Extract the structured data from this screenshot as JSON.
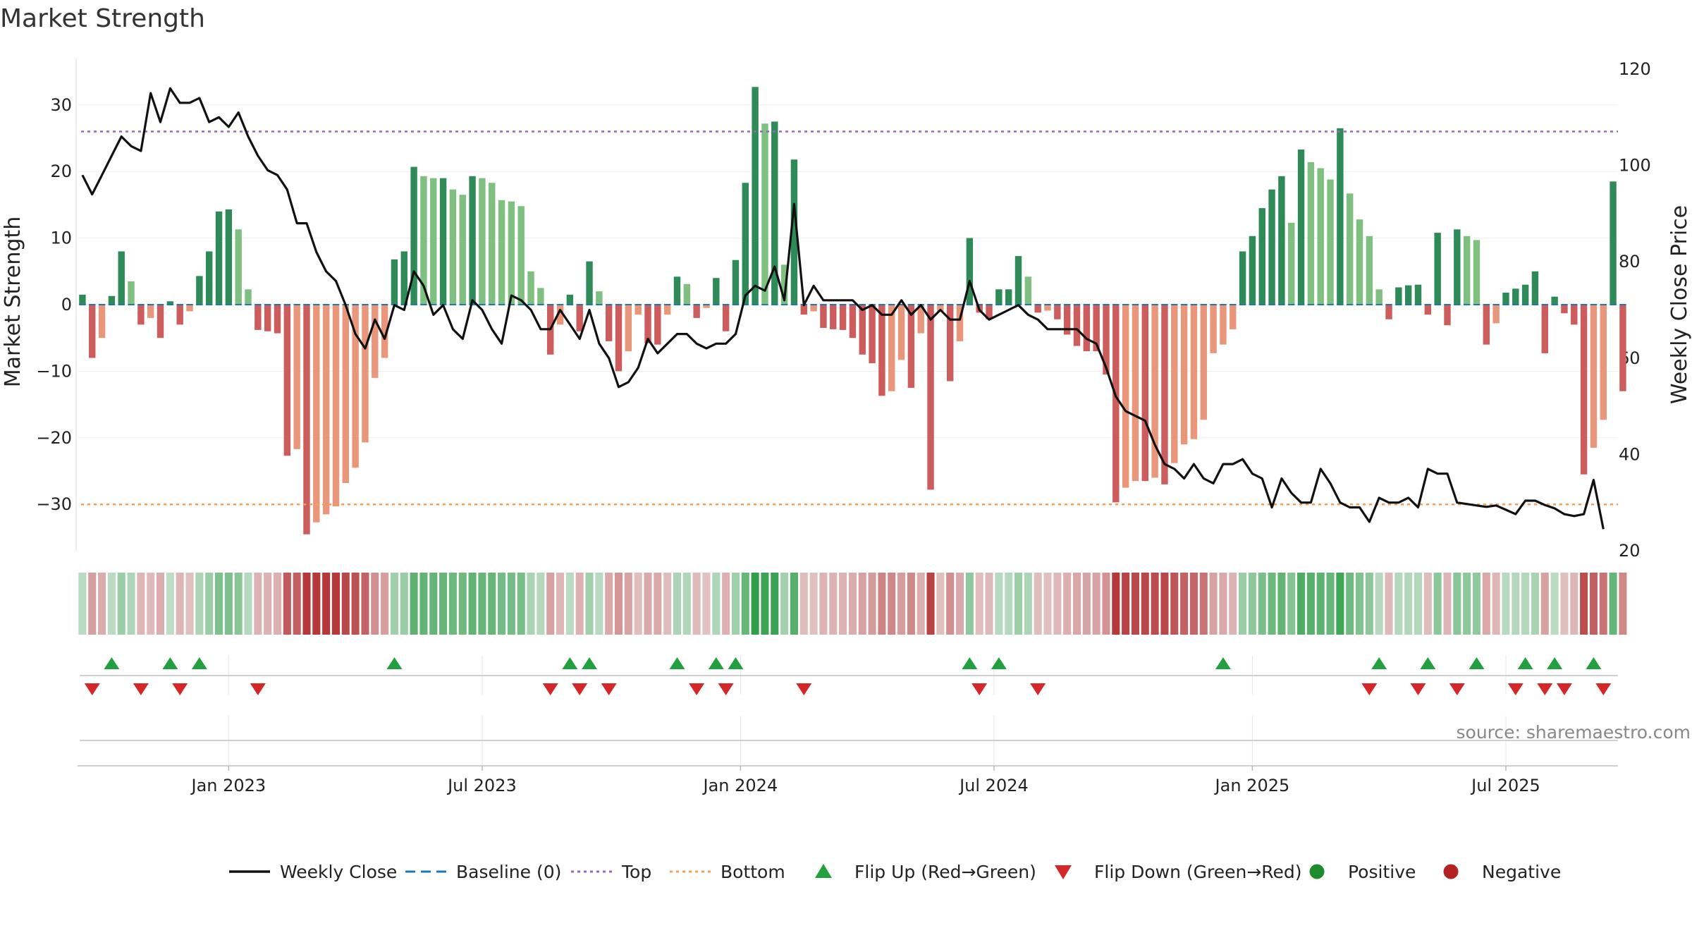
{
  "chart_data": {
    "type": "bar",
    "title": "Market Strength",
    "ylabel_left": "Market Strength",
    "ylabel_right": "Weekly Close Price",
    "ylim_left": [
      -37,
      37
    ],
    "ylim_right": [
      20,
      120
    ],
    "yticks_left": [
      "30",
      "20",
      "10",
      "0",
      "−10",
      "−20",
      "−30"
    ],
    "yticks_left_values": [
      30,
      20,
      10,
      0,
      -10,
      -20,
      -30
    ],
    "yticks_right": [
      "120",
      "100",
      "80",
      "60",
      "40",
      "20"
    ],
    "yticks_right_values": [
      120,
      100,
      80,
      60,
      40,
      20
    ],
    "x_ticks": [
      "Jan 2023",
      "Jul 2023",
      "Jan 2024",
      "Jul 2024",
      "Jan 2025",
      "Jul 2025"
    ],
    "x_tick_weeks": [
      15,
      41,
      67.5,
      93.5,
      120,
      146
    ],
    "top_line": 26,
    "bottom_line": -30,
    "grid": true,
    "legend_position": "bottom",
    "weeks": 158,
    "series": [
      {
        "name": "Market Strength",
        "values": [
          1.5,
          -8,
          -5,
          1.3,
          8,
          3.5,
          -3,
          -2,
          -5,
          0.5,
          -3,
          -1,
          4.3,
          8,
          14,
          14.3,
          11.3,
          2.3,
          -3.8,
          -4,
          -4.3,
          -22.7,
          -21.7,
          -34.5,
          -32.7,
          -31.5,
          -30.3,
          -26.8,
          -24.5,
          -20.7,
          -11,
          -8,
          6.8,
          8,
          20.7,
          19.3,
          19,
          19,
          17.3,
          16.5,
          19.3,
          19,
          18.3,
          15.7,
          15.5,
          14.8,
          5,
          2.5,
          -7.5,
          -3,
          1.5,
          -4,
          6.5,
          2,
          -5.5,
          -10,
          -7,
          -1.5,
          -5.8,
          -6,
          -1.5,
          4.2,
          3.1,
          -2,
          -0.5,
          4,
          -4,
          6.7,
          18.3,
          32.7,
          27.2,
          27.5,
          6,
          21.8,
          -1.5,
          -1,
          -3.5,
          -3.7,
          -3.8,
          -5,
          -7.5,
          -8.8,
          -13.7,
          -13,
          -8.3,
          -12.5,
          -4.3,
          -27.8,
          -1,
          -11.5,
          -5.5,
          10,
          -1.2,
          -2.2,
          2.3,
          2.3,
          7.3,
          4.2,
          -1.2,
          -0.9,
          -2.2,
          -4.5,
          -6.2,
          -7,
          -7,
          -10.5,
          -29.7,
          -27.5,
          -26.5,
          -26.5,
          -26,
          -27,
          -23.8,
          -21,
          -20.2,
          -17.3,
          -7.3,
          -6,
          -3.7,
          8,
          10.3,
          14.5,
          17.3,
          19.3,
          12.3,
          23.3,
          21.4,
          20.5,
          18.8,
          26.5,
          16.7,
          12.8,
          10.3,
          2.3,
          -2.2,
          2.6,
          2.9,
          3,
          -1.5,
          10.8,
          -3.1,
          11.3,
          10.3,
          9.7,
          -6,
          -2.8,
          1.8,
          2.4,
          3,
          5,
          -7.3,
          1.2,
          -1.3,
          -3,
          -25.5,
          -21.5,
          -17.3,
          18.5,
          -13
        ]
      },
      {
        "name": "Weekly Close",
        "values": [
          98,
          94,
          98,
          102,
          106,
          104,
          103,
          115,
          109,
          116,
          113,
          113,
          114,
          109,
          110,
          108,
          111,
          106,
          102,
          99,
          98,
          95,
          88,
          88,
          82,
          78,
          76,
          71,
          65,
          62,
          68,
          64,
          71,
          70,
          78,
          75,
          69,
          71,
          66,
          64,
          72,
          70,
          66,
          63,
          73,
          72,
          70,
          66,
          66,
          70,
          67,
          64,
          70,
          63,
          60,
          54,
          55,
          58,
          64,
          61,
          63,
          65,
          65,
          63,
          62,
          63,
          63,
          65,
          73,
          75,
          74,
          79,
          72,
          92,
          71,
          75,
          72,
          72,
          72,
          72,
          70,
          71,
          69,
          69,
          72,
          69,
          71,
          68,
          70,
          68,
          68,
          76,
          70,
          68,
          69,
          70,
          71,
          69,
          68,
          66,
          66,
          66,
          66,
          64,
          63,
          58,
          52,
          49,
          48,
          47,
          42,
          38,
          37,
          35,
          38,
          35,
          34,
          38,
          38,
          39,
          36,
          35,
          29,
          35,
          32,
          30,
          30,
          37,
          34,
          30,
          29,
          29,
          26,
          31,
          30,
          30,
          31,
          29,
          37,
          36,
          36,
          30,
          29.7,
          29.4,
          29.1,
          29.4,
          28.5,
          27.6,
          30.4,
          30.4,
          29.5,
          28.8,
          27.6,
          27.2,
          27.6,
          34.7,
          24.5
        ]
      }
    ],
    "flip_up_weeks": [
      3,
      9,
      12,
      32,
      50,
      52,
      61,
      65,
      67,
      91,
      94,
      117,
      133,
      138,
      143,
      148,
      151,
      155
    ],
    "flip_down_weeks": [
      1,
      6,
      10,
      18,
      48,
      51,
      54,
      63,
      66,
      74,
      92,
      98,
      132,
      137,
      141,
      147,
      150,
      152,
      156
    ],
    "legend": [
      {
        "label": "Weekly Close",
        "kind": "line",
        "color": "#111111"
      },
      {
        "label": "Baseline (0)",
        "kind": "dash",
        "color": "#1f77b4"
      },
      {
        "label": "Top",
        "kind": "dot",
        "color": "#9467bd"
      },
      {
        "label": "Bottom",
        "kind": "dot",
        "color": "#f0a05a"
      },
      {
        "label": "Flip Up (Red→Green)",
        "kind": "tri-up",
        "color": "#22a040"
      },
      {
        "label": "Flip Down (Green→Red)",
        "kind": "tri-down",
        "color": "#d62728"
      },
      {
        "label": "Positive",
        "kind": "circle",
        "color": "#1e8c2e"
      },
      {
        "label": "Negative",
        "kind": "circle",
        "color": "#b22222"
      }
    ]
  },
  "source": "source: sharemaestro.com",
  "colors": {
    "pos_strong": "#2e8b57",
    "pos_light": "#7fbf7f",
    "neg_strong": "#cd5c5c",
    "neg_light": "#e9967a",
    "top": "#9467bd",
    "bottom": "#f0a05a",
    "baseline": "#1f77b4",
    "price": "#111111"
  }
}
